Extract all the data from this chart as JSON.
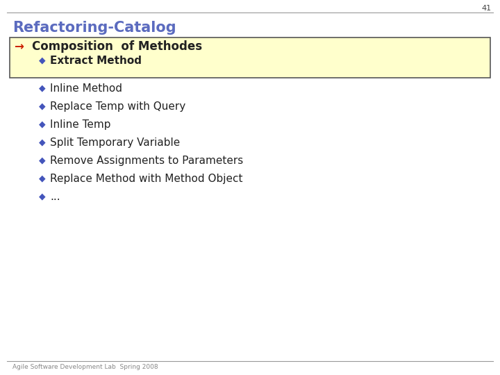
{
  "slide_number": "41",
  "title": "Refactoring-Catalog",
  "title_color": "#5b6bbf",
  "title_fontsize": 15,
  "bg_color": "#ffffff",
  "header_line_color": "#999999",
  "section_heading": "Composition  of Methodes",
  "section_heading_color": "#222222",
  "section_heading_fontsize": 12,
  "section_box_bg": "#ffffcc",
  "section_box_border": "#555555",
  "arrow_color": "#cc2200",
  "bullet_color": "#4455bb",
  "bullet_fontsize": 11,
  "bullet_items": [
    "Extract Method",
    "Inline Method",
    "Replace Temp with Query",
    "Inline Temp",
    "Split Temporary Variable",
    "Remove Assignments to Parameters",
    "Replace Method with Method Object",
    "..."
  ],
  "footer_text": "Agile Software Development Lab  Spring 2008",
  "footer_color": "#888888",
  "footer_fontsize": 6.5
}
